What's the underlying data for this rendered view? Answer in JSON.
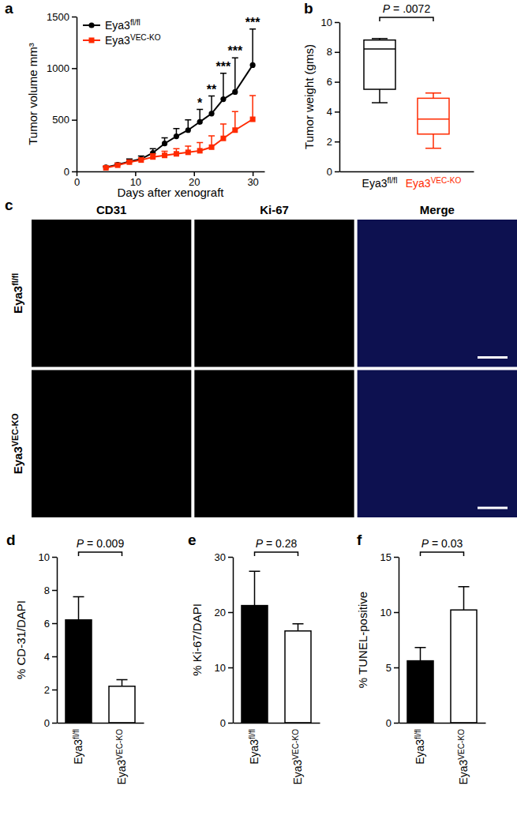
{
  "chart_data": [
    {
      "panel_label": "a",
      "type": "line",
      "x_label": "Days after xenograft",
      "y_label": "Tumor volume mm³",
      "x": [
        5,
        7,
        9,
        11,
        13,
        15,
        17,
        19,
        21,
        23,
        25,
        27,
        30
      ],
      "series": [
        {
          "name": "Eya3fl/fl",
          "color": "#000000",
          "marker": "circle",
          "values": [
            40,
            65,
            95,
            120,
            180,
            270,
            340,
            400,
            480,
            560,
            700,
            770,
            1030
          ],
          "errors": [
            10,
            15,
            25,
            30,
            40,
            55,
            75,
            100,
            120,
            170,
            250,
            330,
            350
          ]
        },
        {
          "name": "Eya3VEC-KO",
          "color": "#ff2a00",
          "marker": "square",
          "values": [
            35,
            60,
            90,
            110,
            140,
            155,
            170,
            185,
            200,
            235,
            320,
            400,
            505
          ],
          "errors": [
            10,
            15,
            15,
            20,
            30,
            40,
            50,
            60,
            80,
            110,
            140,
            180,
            230
          ]
        }
      ],
      "xlim": [
        0,
        32
      ],
      "xticks": [
        0,
        10,
        20,
        30
      ],
      "ylim": [
        0,
        1500
      ],
      "yticks": [
        0,
        500,
        1000,
        1500
      ],
      "legend": "upper left",
      "annotations": [
        {
          "x": 21,
          "text": "*"
        },
        {
          "x": 23,
          "text": "**"
        },
        {
          "x": 25,
          "text": "***"
        },
        {
          "x": 27,
          "text": "***"
        },
        {
          "x": 30,
          "text": "***"
        }
      ]
    },
    {
      "panel_label": "b",
      "type": "box",
      "y_label": "Tumor weight (gms)",
      "categories": [
        "Eya3fl/fl",
        "Eya3VEC-KO"
      ],
      "colors": [
        "#000000",
        "#ff2a00"
      ],
      "boxes": [
        {
          "min": 4.6,
          "q1": 5.5,
          "median": 8.2,
          "q3": 8.8,
          "max": 8.9
        },
        {
          "min": 1.55,
          "q1": 2.5,
          "median": 3.5,
          "q3": 4.9,
          "max": 5.25
        }
      ],
      "ylim": [
        0,
        10
      ],
      "yticks": [
        0,
        2,
        4,
        6,
        8,
        10
      ],
      "annotations": [
        {
          "text": "P = .0072"
        }
      ]
    },
    {
      "panel_label": "d",
      "type": "bar",
      "y_label": "% CD-31/DAPI",
      "categories": [
        "Eya3fl/fl",
        "Eya3VEC-KO"
      ],
      "values": [
        6.2,
        2.2
      ],
      "errors": [
        1.4,
        0.4
      ],
      "colors": [
        "#000000",
        "#ffffff"
      ],
      "ylim": [
        0,
        10
      ],
      "yticks": [
        0,
        2,
        4,
        6,
        8,
        10
      ],
      "annotations": [
        {
          "text": "P = 0.009"
        }
      ]
    },
    {
      "panel_label": "e",
      "type": "bar",
      "y_label": "% Ki-67/DAPI",
      "categories": [
        "Eya3fl/fl",
        "Eya3VEC-KO"
      ],
      "values": [
        21.2,
        16.6
      ],
      "errors": [
        6.2,
        1.3
      ],
      "colors": [
        "#000000",
        "#ffffff"
      ],
      "ylim": [
        0,
        30
      ],
      "yticks": [
        0,
        10,
        20,
        30
      ],
      "annotations": [
        {
          "text": "P = 0.28"
        }
      ]
    },
    {
      "panel_label": "f",
      "type": "bar",
      "y_label": "% TUNEL-positive",
      "categories": [
        "Eya3fl/fl",
        "Eya3VEC-KO"
      ],
      "values": [
        5.6,
        10.2
      ],
      "errors": [
        1.2,
        2.1
      ],
      "colors": [
        "#000000",
        "#ffffff"
      ],
      "ylim": [
        0,
        15
      ],
      "yticks": [
        0,
        5,
        10,
        15
      ],
      "annotations": [
        {
          "text": "P = 0.03"
        }
      ]
    }
  ],
  "image_panel": {
    "panel_label": "c",
    "columns": [
      "CD31",
      "Ki-67",
      "Merge"
    ],
    "rows": [
      "Eya3fl/fl",
      "Eya3VEC-KO"
    ]
  }
}
